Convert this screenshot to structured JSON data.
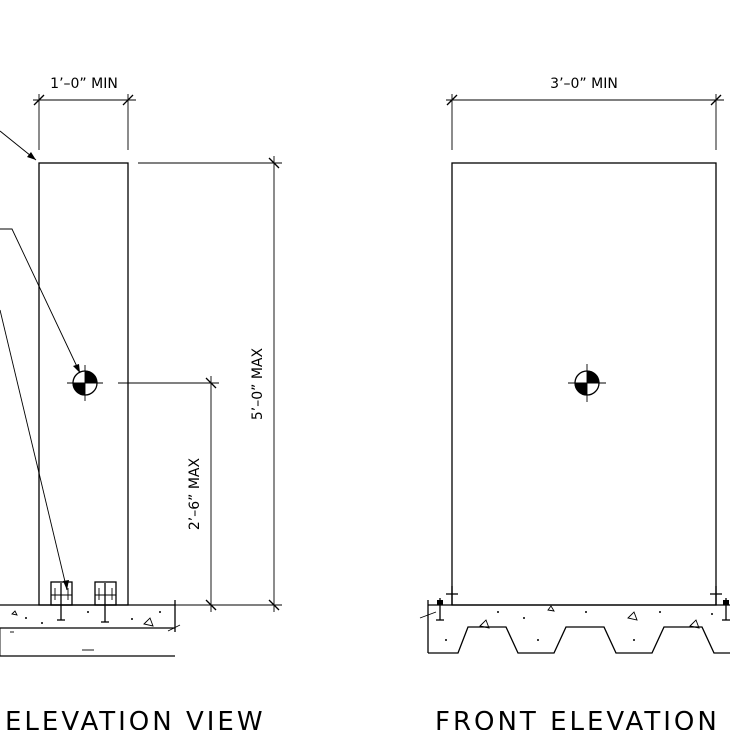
{
  "side_view": {
    "title": "ELEVATION  VIEW",
    "dim_width": "1’–0”  MIN",
    "dim_height": "5’–0”  MAX",
    "dim_cg_height": "2’–6”  MAX"
  },
  "front_view": {
    "title": "FRONT  ELEVATION  VIEW",
    "dim_width": "3’–0”  MIN"
  }
}
